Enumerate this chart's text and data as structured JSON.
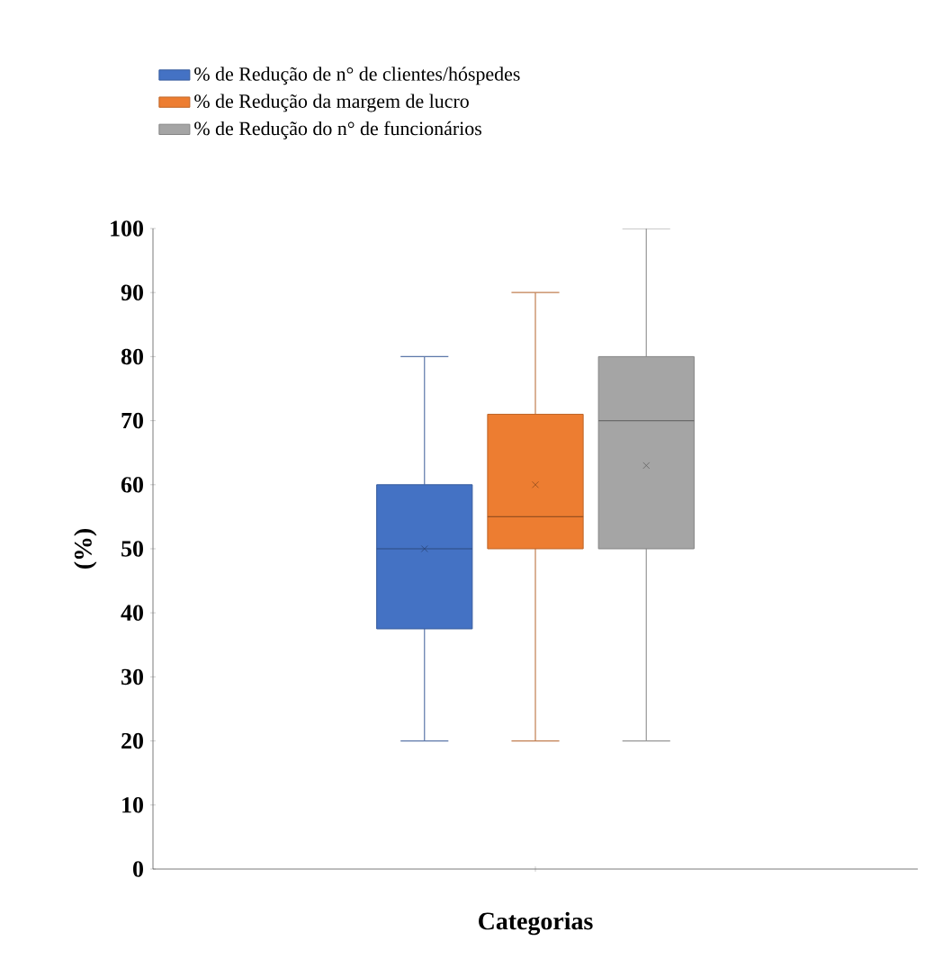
{
  "chart_data": {
    "type": "box",
    "xlabel": "Categorias",
    "ylabel": "(%)",
    "categories": [
      null
    ],
    "ylim": [
      0,
      100
    ],
    "yticks": [
      0,
      10,
      20,
      30,
      40,
      50,
      60,
      70,
      80,
      90,
      100
    ],
    "legend": "top",
    "series": [
      {
        "name": "% de Redução de n° de clientes/hóspedes",
        "color": "#4472c4",
        "boxes": [
          {
            "low": 20,
            "q1": 37.5,
            "median": 50,
            "q3": 60,
            "high": 80,
            "mean": 50
          }
        ]
      },
      {
        "name": "% de Redução da margem de lucro",
        "color": "#ed7d31",
        "boxes": [
          {
            "low": 20,
            "q1": 50,
            "median": 55,
            "q3": 71,
            "high": 90,
            "mean": 60
          }
        ]
      },
      {
        "name": "% de Redução do n° de funcionários",
        "color": "#a5a5a5",
        "boxes": [
          {
            "low": 20,
            "q1": 50,
            "median": 70,
            "q3": 80,
            "high": 100,
            "mean": 63
          }
        ]
      }
    ]
  }
}
